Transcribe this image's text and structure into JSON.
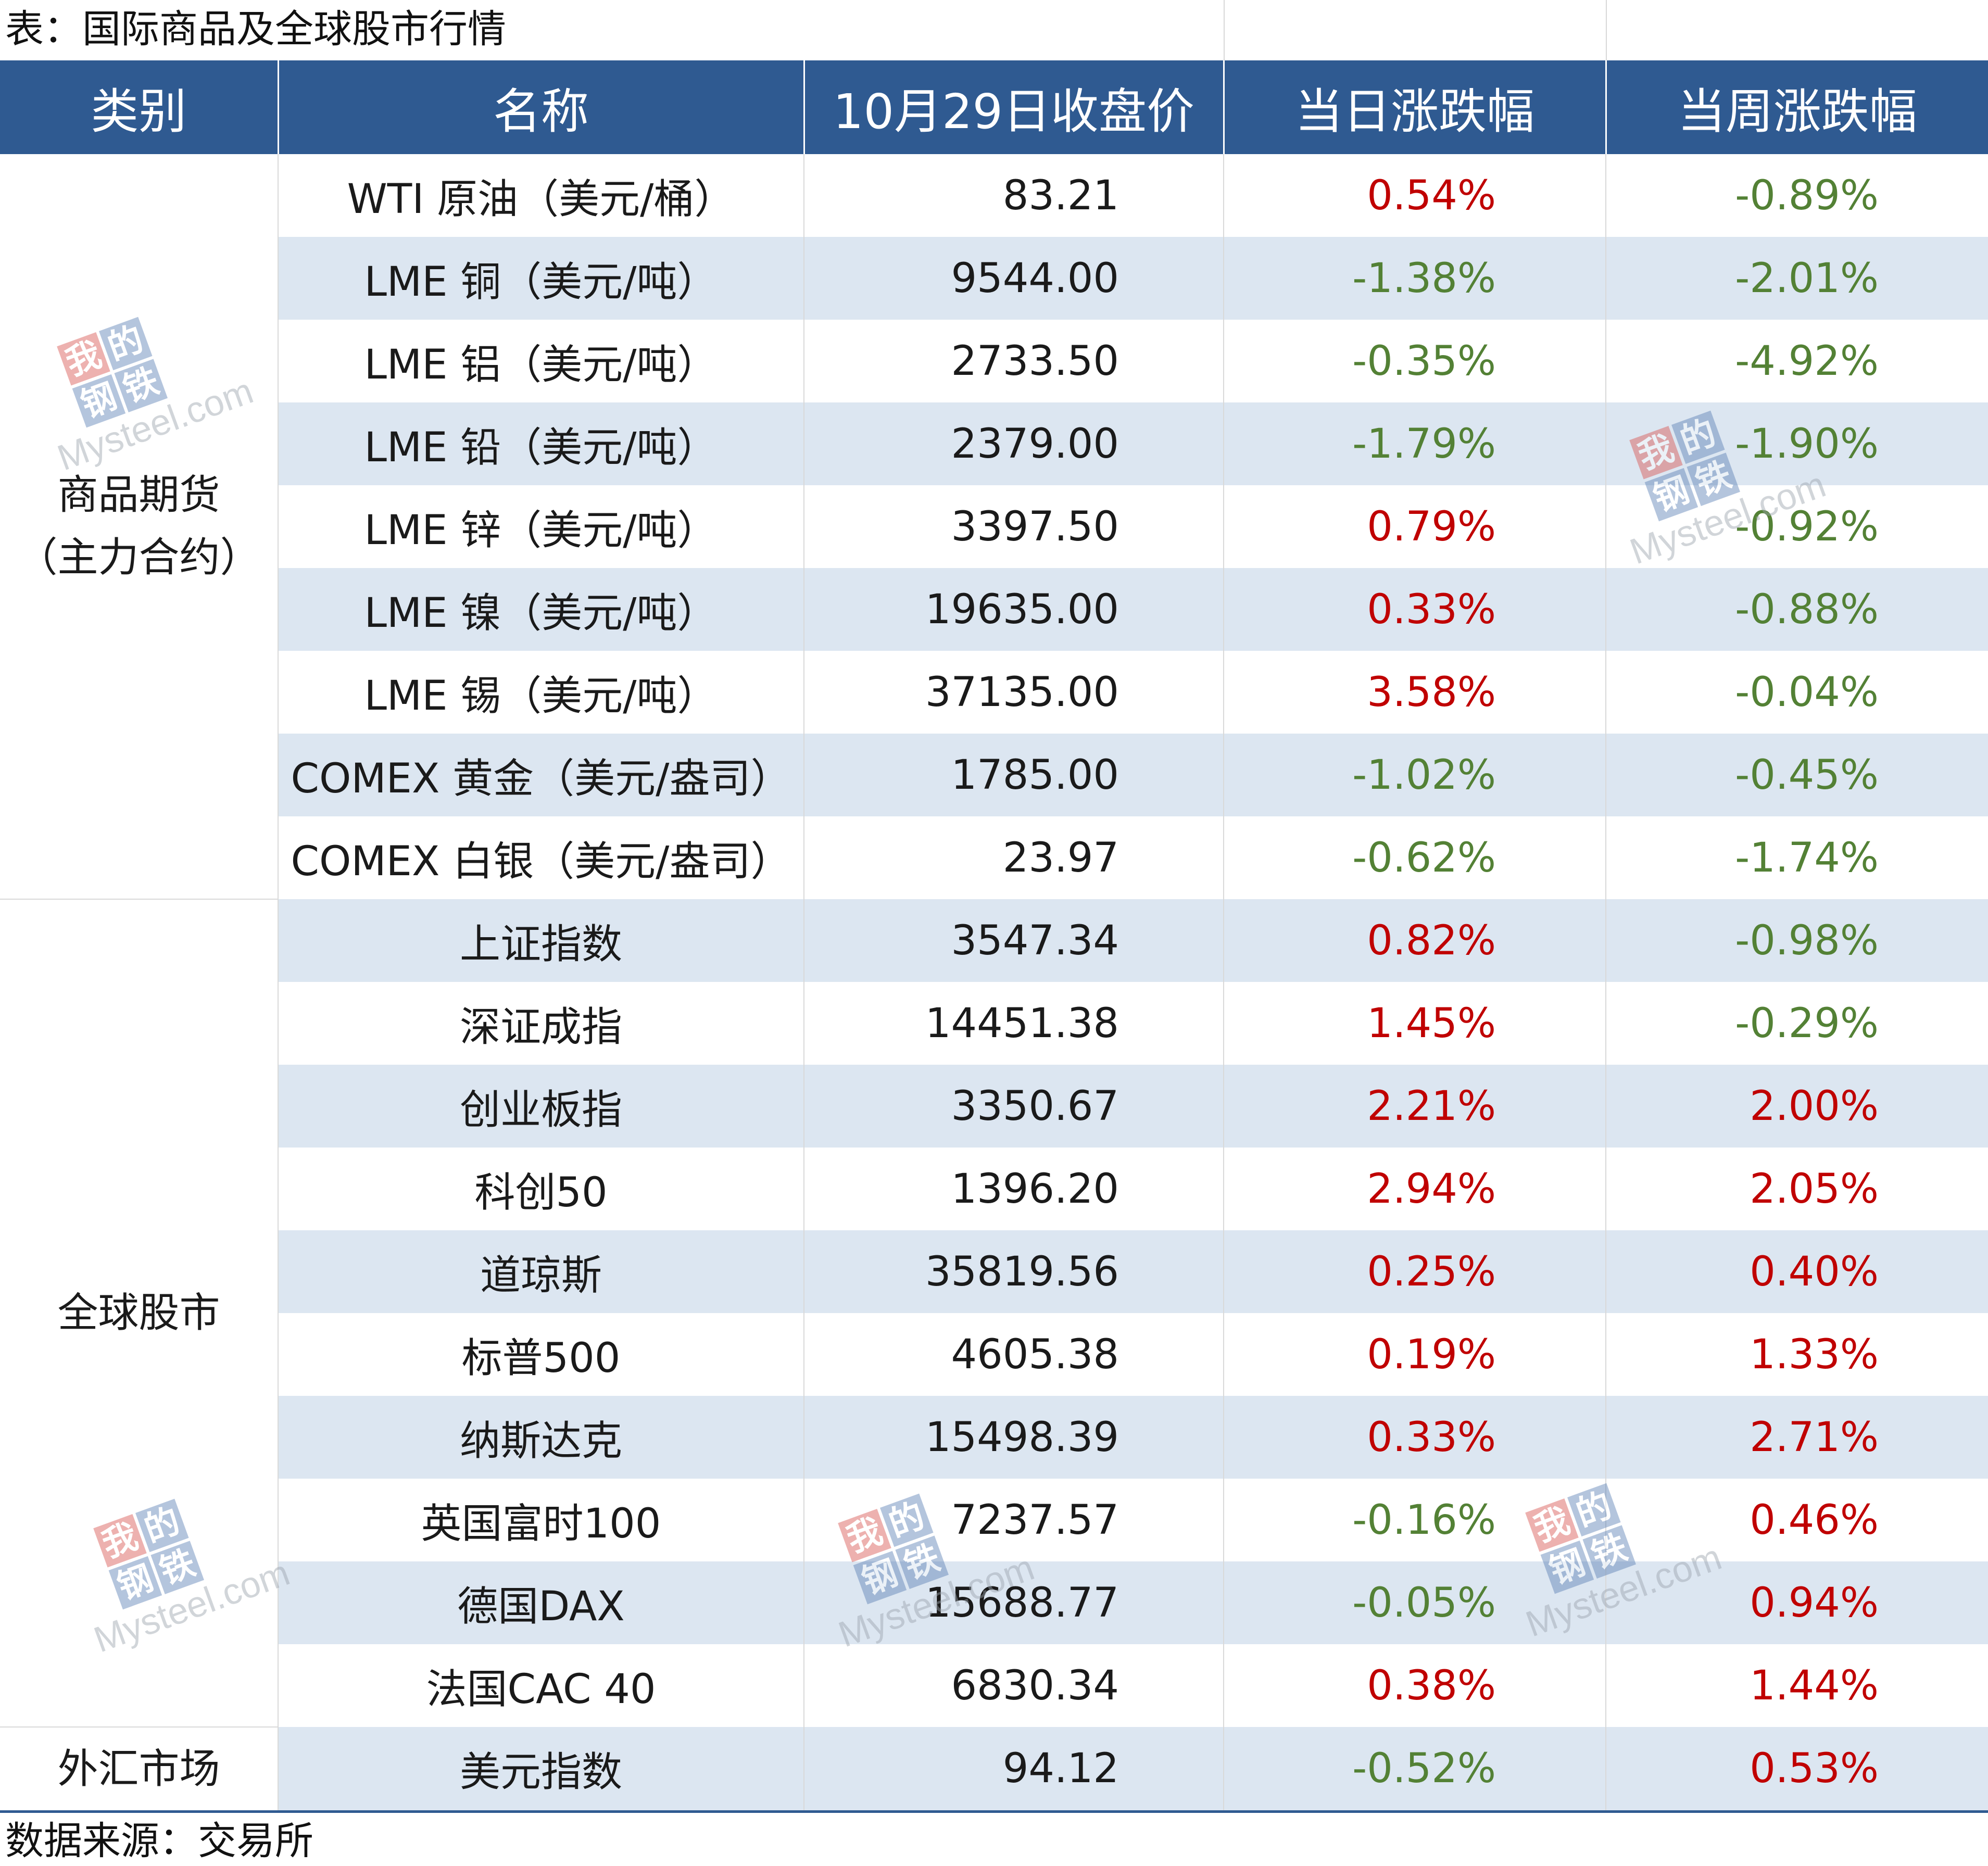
{
  "caption": "表：国际商品及全球股市行情",
  "source": "数据来源：交易所",
  "watermark": {
    "seal_chars": [
      "我",
      "的",
      "钢",
      "铁"
    ],
    "brand": "Mysteel.com"
  },
  "headers": [
    "类别",
    "名称",
    "10月29日收盘价",
    "当日涨跌幅",
    "当周涨跌幅"
  ],
  "categories": [
    {
      "label_line1": "商品期货",
      "label_line2": "（主力合约）"
    },
    {
      "label_line1": "全球股市",
      "label_line2": ""
    },
    {
      "label_line1": "外汇市场",
      "label_line2": ""
    }
  ],
  "rows": [
    {
      "name": "WTI 原油（美元/桶）",
      "close": "83.21",
      "day": "0.54%",
      "week": "-0.89%"
    },
    {
      "name": "LME 铜（美元/吨）",
      "close": "9544.00",
      "day": "-1.38%",
      "week": "-2.01%"
    },
    {
      "name": "LME 铝（美元/吨）",
      "close": "2733.50",
      "day": "-0.35%",
      "week": "-4.92%"
    },
    {
      "name": "LME 铅（美元/吨）",
      "close": "2379.00",
      "day": "-1.79%",
      "week": "-1.90%"
    },
    {
      "name": "LME 锌（美元/吨）",
      "close": "3397.50",
      "day": "0.79%",
      "week": "-0.92%"
    },
    {
      "name": "LME 镍（美元/吨）",
      "close": "19635.00",
      "day": "0.33%",
      "week": "-0.88%"
    },
    {
      "name": "LME 锡（美元/吨）",
      "close": "37135.00",
      "day": "3.58%",
      "week": "-0.04%"
    },
    {
      "name": "COMEX 黄金（美元/盎司）",
      "close": "1785.00",
      "day": "-1.02%",
      "week": "-0.45%"
    },
    {
      "name": "COMEX 白银（美元/盎司）",
      "close": "23.97",
      "day": "-0.62%",
      "week": "-1.74%"
    },
    {
      "name": "上证指数",
      "close": "3547.34",
      "day": "0.82%",
      "week": "-0.98%"
    },
    {
      "name": "深证成指",
      "close": "14451.38",
      "day": "1.45%",
      "week": "-0.29%"
    },
    {
      "name": "创业板指",
      "close": "3350.67",
      "day": "2.21%",
      "week": "2.00%"
    },
    {
      "name": "科创50",
      "close": "1396.20",
      "day": "2.94%",
      "week": "2.05%"
    },
    {
      "name": "道琼斯",
      "close": "35819.56",
      "day": "0.25%",
      "week": "0.40%"
    },
    {
      "name": "标普500",
      "close": "4605.38",
      "day": "0.19%",
      "week": "1.33%"
    },
    {
      "name": "纳斯达克",
      "close": "15498.39",
      "day": "0.33%",
      "week": "2.71%"
    },
    {
      "name": "英国富时100",
      "close": "7237.57",
      "day": "-0.16%",
      "week": "0.46%"
    },
    {
      "name": "德国DAX",
      "close": "15688.77",
      "day": "-0.05%",
      "week": "0.94%"
    },
    {
      "name": "法国CAC 40",
      "close": "6830.34",
      "day": "0.38%",
      "week": "1.44%"
    },
    {
      "name": "美元指数",
      "close": "94.12",
      "day": "-0.52%",
      "week": "0.53%"
    }
  ],
  "colors": {
    "header_bg": "#2f5a91",
    "shaded_row": "#dce6f1",
    "up": "#c00000",
    "down": "#538135"
  }
}
